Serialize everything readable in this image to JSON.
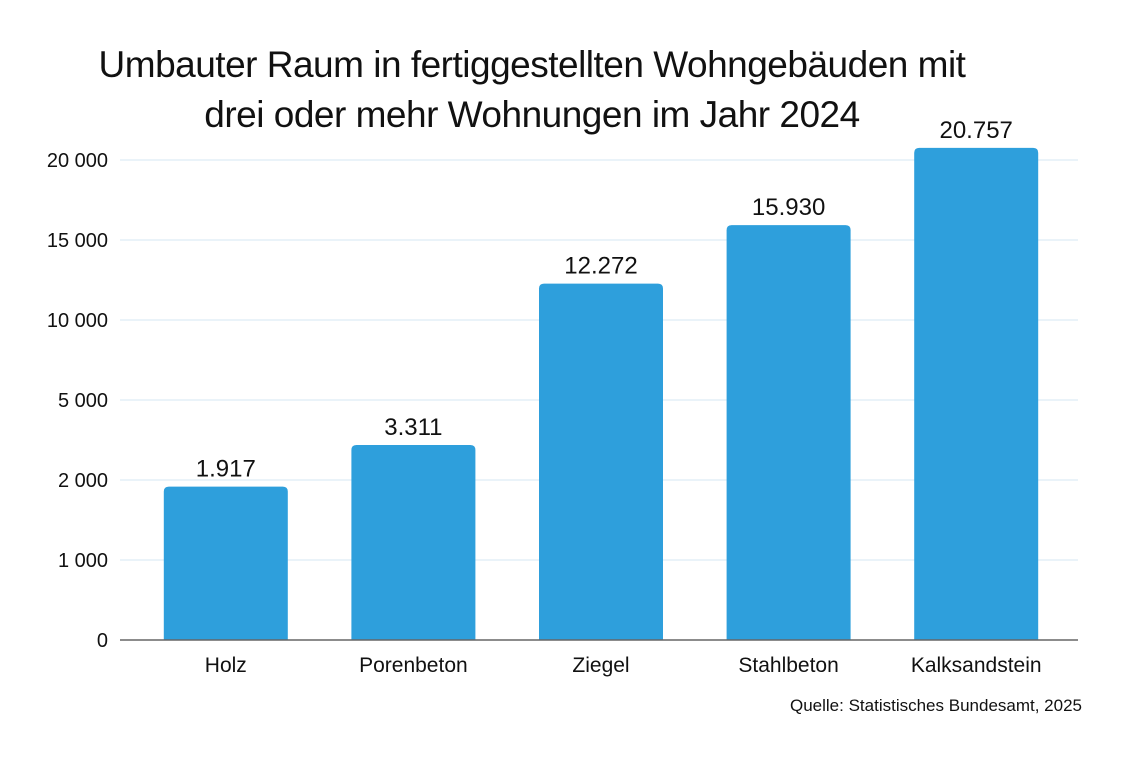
{
  "chart_data": {
    "type": "bar",
    "title_lines": [
      "Umbauter Raum in fertiggestellten Wohngebäuden mit",
      "drei oder mehr Wohnungen im Jahr 2024"
    ],
    "categories": [
      "Holz",
      "Porenbeton",
      "Ziegel",
      "Stahlbeton",
      "Kalksandstein"
    ],
    "values": [
      1917,
      3311,
      12272,
      15930,
      20757
    ],
    "value_labels": [
      "1.917",
      "3.311",
      "12.272",
      "15.930",
      "20.757"
    ],
    "xlabel": "",
    "ylabel": "",
    "y_ticks": [
      0,
      1000,
      2000,
      5000,
      10000,
      15000,
      20000
    ],
    "y_tick_labels": [
      "0",
      "1 000",
      "2 000",
      "5 000",
      "10 000",
      "15 000",
      "20 000"
    ],
    "y_scale": "non-linear (equally spaced ticks)",
    "grid": true,
    "bar_color": "#2e9fdc",
    "gridline_color": "#e3eff7",
    "source": "Quelle: Statistisches Bundesamt, 2025"
  }
}
